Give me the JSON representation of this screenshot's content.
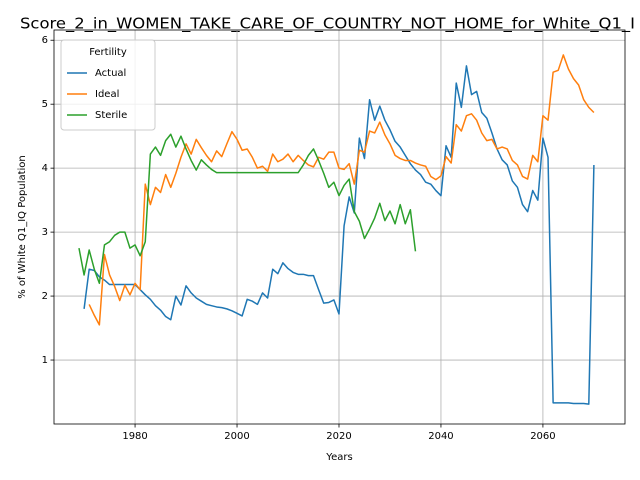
{
  "chart_data": {
    "type": "line",
    "title": "Score_2_in_WOMEN_TAKE_CARE_OF_COUNTRY_NOT_HOME_for_White_Q1_I",
    "x_label": "Years",
    "y_label": "% of White Q1_IQ Population",
    "legend_title": "Fertility",
    "legend": "upper left",
    "grid": true,
    "xlim": [
      1964.1,
      2076.1
    ],
    "ylim": [
      0,
      6.16
    ],
    "xticks": [
      1980,
      2000,
      2020,
      2040,
      2060
    ],
    "yticks": [
      1,
      2,
      3,
      4,
      5,
      6
    ],
    "x": [
      1969,
      1970,
      1971,
      1972,
      1973,
      1974,
      1975,
      1976,
      1977,
      1978,
      1979,
      1980,
      1981,
      1982,
      1983,
      1984,
      1985,
      1986,
      1987,
      1988,
      1989,
      1990,
      1991,
      1992,
      1993,
      1994,
      1995,
      1996,
      1997,
      1998,
      1999,
      2000,
      2001,
      2002,
      2003,
      2004,
      2005,
      2006,
      2007,
      2008,
      2009,
      2010,
      2011,
      2012,
      2013,
      2014,
      2015,
      2016,
      2017,
      2018,
      2019,
      2020,
      2021,
      2022,
      2023,
      2024,
      2025,
      2026,
      2027,
      2028,
      2029,
      2030,
      2031,
      2032,
      2033,
      2034,
      2035,
      2036,
      2037,
      2038,
      2039,
      2040,
      2041,
      2042,
      2043,
      2044,
      2045,
      2046,
      2047,
      2048,
      2049,
      2050,
      2051,
      2052,
      2053,
      2054,
      2055,
      2056,
      2057,
      2058,
      2059,
      2060,
      2061,
      2062,
      2063,
      2064,
      2065,
      2066,
      2067,
      2068,
      2069,
      2070
    ],
    "series": [
      {
        "name": "Actual",
        "color": "#1f77b4",
        "values": [
          null,
          1.8,
          2.42,
          2.4,
          2.3,
          2.25,
          2.18,
          2.18,
          2.18,
          2.18,
          2.18,
          2.18,
          2.1,
          2.02,
          1.95,
          1.85,
          1.78,
          1.68,
          1.63,
          2.0,
          1.86,
          2.16,
          2.05,
          1.97,
          1.92,
          1.87,
          1.85,
          1.83,
          1.82,
          1.8,
          1.77,
          1.73,
          1.69,
          1.95,
          1.92,
          1.87,
          2.05,
          1.97,
          2.42,
          2.35,
          2.52,
          2.43,
          2.37,
          2.34,
          2.34,
          2.32,
          2.32,
          2.1,
          1.89,
          1.9,
          1.94,
          1.72,
          3.1,
          3.55,
          3.3,
          4.47,
          4.15,
          5.07,
          4.75,
          4.97,
          4.75,
          4.6,
          4.42,
          4.33,
          4.2,
          4.07,
          3.97,
          3.9,
          3.78,
          3.75,
          3.65,
          3.57,
          4.35,
          4.17,
          5.33,
          4.95,
          5.6,
          5.15,
          5.2,
          4.87,
          4.78,
          4.55,
          4.3,
          4.13,
          4.05,
          3.8,
          3.7,
          3.43,
          3.32,
          3.65,
          3.5,
          4.47,
          4.17,
          0.33,
          0.33,
          0.33,
          0.33,
          0.32,
          0.32,
          0.32,
          0.31,
          4.05
        ]
      },
      {
        "name": "Ideal",
        "color": "#ff7f0e",
        "values": [
          null,
          null,
          1.87,
          1.7,
          1.55,
          2.65,
          2.33,
          2.15,
          1.93,
          2.17,
          2.02,
          2.2,
          2.1,
          3.75,
          3.43,
          3.7,
          3.62,
          3.9,
          3.7,
          3.92,
          4.17,
          4.38,
          4.22,
          4.45,
          4.32,
          4.2,
          4.1,
          4.27,
          4.18,
          4.38,
          4.57,
          4.45,
          4.28,
          4.3,
          4.17,
          4.0,
          4.03,
          3.95,
          4.22,
          4.1,
          4.14,
          4.22,
          4.1,
          4.2,
          4.12,
          4.05,
          4.02,
          4.17,
          4.14,
          4.25,
          4.25,
          4.0,
          3.98,
          4.07,
          3.75,
          4.28,
          4.25,
          4.58,
          4.55,
          4.72,
          4.52,
          4.38,
          4.2,
          4.15,
          4.12,
          4.12,
          4.08,
          4.05,
          4.03,
          3.87,
          3.82,
          3.88,
          4.18,
          4.08,
          4.68,
          4.58,
          4.82,
          4.85,
          4.75,
          4.55,
          4.43,
          4.45,
          4.3,
          4.33,
          4.3,
          4.12,
          4.05,
          3.87,
          3.83,
          4.2,
          4.1,
          4.82,
          4.75,
          5.5,
          5.53,
          5.77,
          5.55,
          5.4,
          5.3,
          5.07,
          4.95,
          4.87
        ]
      },
      {
        "name": "Sterile",
        "color": "#2ca02c",
        "values": [
          2.75,
          2.33,
          2.72,
          2.42,
          2.2,
          2.8,
          2.85,
          2.95,
          3.0,
          3.0,
          2.75,
          2.8,
          2.63,
          2.85,
          4.22,
          4.33,
          4.2,
          4.43,
          4.53,
          4.33,
          4.5,
          4.3,
          4.12,
          3.97,
          4.13,
          4.05,
          3.98,
          3.93,
          3.93,
          3.93,
          3.93,
          3.93,
          3.93,
          3.93,
          3.93,
          3.93,
          3.93,
          3.93,
          3.93,
          3.93,
          3.93,
          3.93,
          3.93,
          3.93,
          4.05,
          4.2,
          4.3,
          4.12,
          3.92,
          3.7,
          3.78,
          3.57,
          3.73,
          3.83,
          3.32,
          3.17,
          2.9,
          3.05,
          3.22,
          3.45,
          3.18,
          3.33,
          3.13,
          3.43,
          3.13,
          3.35,
          2.7,
          null,
          null,
          null,
          null,
          null,
          null,
          null,
          null,
          null,
          null,
          null,
          null,
          null,
          null,
          null,
          null,
          null,
          null,
          null,
          null,
          null,
          null,
          null,
          null,
          null,
          null,
          null,
          null,
          null,
          null,
          null,
          null,
          null,
          null,
          null
        ]
      }
    ]
  }
}
